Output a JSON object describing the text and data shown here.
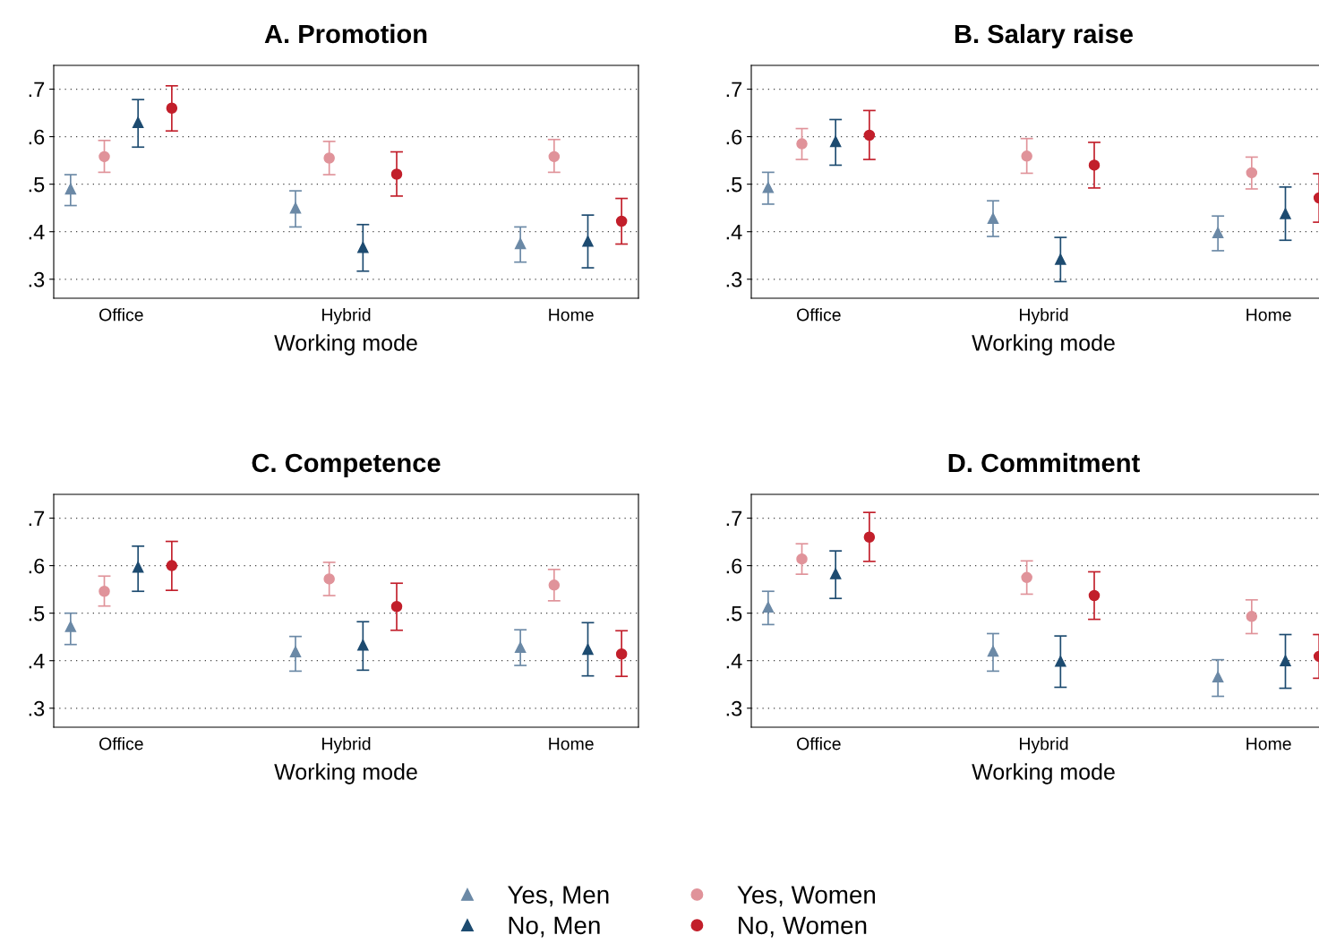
{
  "chart_data": [
    {
      "type": "scatter",
      "title": "A. Promotion",
      "xlabel": "Working mode",
      "legend": "bottom",
      "categories": [
        "Office",
        "Hybrid",
        "Home"
      ],
      "ylim": [
        0.26,
        0.75
      ],
      "yticks": [
        {
          "value": 0.3,
          "label": ".3"
        },
        {
          "value": 0.4,
          "label": ".4"
        },
        {
          "value": 0.5,
          "label": ".5"
        },
        {
          "value": 0.6,
          "label": ".6"
        },
        {
          "value": 0.7,
          "label": ".7"
        }
      ],
      "grid": "y",
      "series": [
        {
          "name": "Yes, Men",
          "color": "#6b89a6",
          "marker": "triangle",
          "values": [
            0.49,
            0.45,
            0.375
          ],
          "errors": [
            [
              0.455,
              0.52
            ],
            [
              0.41,
              0.486
            ],
            [
              0.336,
              0.41
            ]
          ]
        },
        {
          "name": "Yes, Women",
          "color": "#e0939a",
          "marker": "circle",
          "values": [
            0.558,
            0.555,
            0.558
          ],
          "errors": [
            [
              0.525,
              0.592
            ],
            [
              0.52,
              0.59
            ],
            [
              0.525,
              0.594
            ]
          ]
        },
        {
          "name": "No, Men",
          "color": "#1d4b70",
          "marker": "triangle",
          "values": [
            0.63,
            0.367,
            0.38
          ],
          "errors": [
            [
              0.578,
              0.678
            ],
            [
              0.317,
              0.415
            ],
            [
              0.324,
              0.435
            ]
          ]
        },
        {
          "name": "No, Women",
          "color": "#c21f2b",
          "marker": "circle",
          "values": [
            0.66,
            0.521,
            0.422
          ],
          "errors": [
            [
              0.612,
              0.707
            ],
            [
              0.475,
              0.568
            ],
            [
              0.374,
              0.47
            ]
          ]
        }
      ]
    },
    {
      "type": "scatter",
      "title": "B. Salary raise",
      "xlabel": "Working mode",
      "categories": [
        "Office",
        "Hybrid",
        "Home"
      ],
      "ylim": [
        0.26,
        0.75
      ],
      "yticks": [
        {
          "value": 0.3,
          "label": ".3"
        },
        {
          "value": 0.4,
          "label": ".4"
        },
        {
          "value": 0.5,
          "label": ".5"
        },
        {
          "value": 0.6,
          "label": ".6"
        },
        {
          "value": 0.7,
          "label": ".7"
        }
      ],
      "grid": "y",
      "series": [
        {
          "color": "#6b89a6",
          "marker": "triangle",
          "values": [
            0.493,
            0.428,
            0.398
          ],
          "errors": [
            [
              0.458,
              0.525
            ],
            [
              0.39,
              0.465
            ],
            [
              0.36,
              0.433
            ]
          ]
        },
        {
          "color": "#e0939a",
          "marker": "circle",
          "values": [
            0.585,
            0.559,
            0.524
          ],
          "errors": [
            [
              0.552,
              0.617
            ],
            [
              0.523,
              0.596
            ],
            [
              0.49,
              0.557
            ]
          ]
        },
        {
          "color": "#1d4b70",
          "marker": "triangle",
          "values": [
            0.59,
            0.342,
            0.438
          ],
          "errors": [
            [
              0.54,
              0.636
            ],
            [
              0.295,
              0.388
            ],
            [
              0.382,
              0.494
            ]
          ]
        },
        {
          "color": "#c21f2b",
          "marker": "circle",
          "values": [
            0.603,
            0.54,
            0.471
          ],
          "errors": [
            [
              0.552,
              0.655
            ],
            [
              0.492,
              0.588
            ],
            [
              0.42,
              0.522
            ]
          ]
        }
      ]
    },
    {
      "type": "scatter",
      "title": "C. Competence",
      "xlabel": "Working mode",
      "categories": [
        "Office",
        "Hybrid",
        "Home"
      ],
      "ylim": [
        0.26,
        0.75
      ],
      "yticks": [
        {
          "value": 0.3,
          "label": ".3"
        },
        {
          "value": 0.4,
          "label": ".4"
        },
        {
          "value": 0.5,
          "label": ".5"
        },
        {
          "value": 0.6,
          "label": ".6"
        },
        {
          "value": 0.7,
          "label": ".7"
        }
      ],
      "grid": "y",
      "series": [
        {
          "color": "#6b89a6",
          "marker": "triangle",
          "values": [
            0.472,
            0.419,
            0.428
          ],
          "errors": [
            [
              0.434,
              0.5
            ],
            [
              0.378,
              0.451
            ],
            [
              0.39,
              0.465
            ]
          ]
        },
        {
          "color": "#e0939a",
          "marker": "circle",
          "values": [
            0.546,
            0.572,
            0.559
          ],
          "errors": [
            [
              0.515,
              0.578
            ],
            [
              0.537,
              0.607
            ],
            [
              0.526,
              0.592
            ]
          ]
        },
        {
          "color": "#1d4b70",
          "marker": "triangle",
          "values": [
            0.597,
            0.433,
            0.424
          ],
          "errors": [
            [
              0.546,
              0.641
            ],
            [
              0.38,
              0.482
            ],
            [
              0.368,
              0.48
            ]
          ]
        },
        {
          "color": "#c21f2b",
          "marker": "circle",
          "values": [
            0.6,
            0.514,
            0.414
          ],
          "errors": [
            [
              0.548,
              0.651
            ],
            [
              0.464,
              0.563
            ],
            [
              0.367,
              0.463
            ]
          ]
        }
      ]
    },
    {
      "type": "scatter",
      "title": "D. Commitment",
      "xlabel": "Working mode",
      "categories": [
        "Office",
        "Hybrid",
        "Home"
      ],
      "ylim": [
        0.26,
        0.75
      ],
      "yticks": [
        {
          "value": 0.3,
          "label": ".3"
        },
        {
          "value": 0.4,
          "label": ".4"
        },
        {
          "value": 0.5,
          "label": ".5"
        },
        {
          "value": 0.6,
          "label": ".6"
        },
        {
          "value": 0.7,
          "label": ".7"
        }
      ],
      "grid": "y",
      "series": [
        {
          "color": "#6b89a6",
          "marker": "triangle",
          "values": [
            0.513,
            0.42,
            0.366
          ],
          "errors": [
            [
              0.476,
              0.546
            ],
            [
              0.378,
              0.457
            ],
            [
              0.325,
              0.402
            ]
          ]
        },
        {
          "color": "#e0939a",
          "marker": "circle",
          "values": [
            0.614,
            0.575,
            0.493
          ],
          "errors": [
            [
              0.582,
              0.646
            ],
            [
              0.54,
              0.61
            ],
            [
              0.457,
              0.528
            ]
          ]
        },
        {
          "color": "#1d4b70",
          "marker": "triangle",
          "values": [
            0.583,
            0.399,
            0.4
          ],
          "errors": [
            [
              0.531,
              0.631
            ],
            [
              0.344,
              0.452
            ],
            [
              0.342,
              0.455
            ]
          ]
        },
        {
          "color": "#c21f2b",
          "marker": "circle",
          "values": [
            0.66,
            0.537,
            0.409
          ],
          "errors": [
            [
              0.609,
              0.712
            ],
            [
              0.487,
              0.587
            ],
            [
              0.363,
              0.455
            ]
          ]
        }
      ]
    }
  ]
}
